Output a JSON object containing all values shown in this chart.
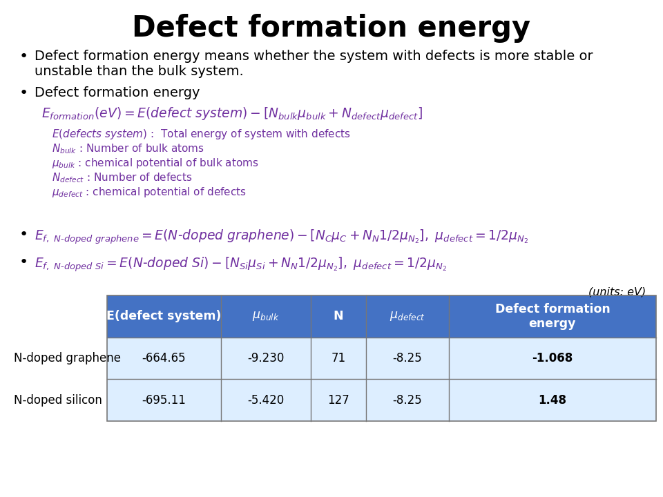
{
  "title": "Defect formation energy",
  "title_fontsize": 30,
  "title_fontweight": "bold",
  "bg_color": "#ffffff",
  "purple": "#7030A0",
  "black": "#000000",
  "header_blue": "#4472C4",
  "row_light_blue": "#DDEEFF",
  "bullet1_line1": "Defect formation energy means whether the system with defects is more stable or",
  "bullet1_line2": "unstable than the bulk system.",
  "table_col_headers": [
    "E(defect system)",
    "μ_bulk",
    "N",
    "μ_defect",
    "Defect formation\nenergy"
  ],
  "row1_label": "N-doped graphene",
  "row1_vals": [
    "-664.65",
    "-9.230",
    "71",
    "-8.25",
    "-1.068"
  ],
  "row2_label": "N-doped silicon",
  "row2_vals": [
    "-695.11",
    "-5.420",
    "127",
    "-8.25",
    "1.48"
  ]
}
